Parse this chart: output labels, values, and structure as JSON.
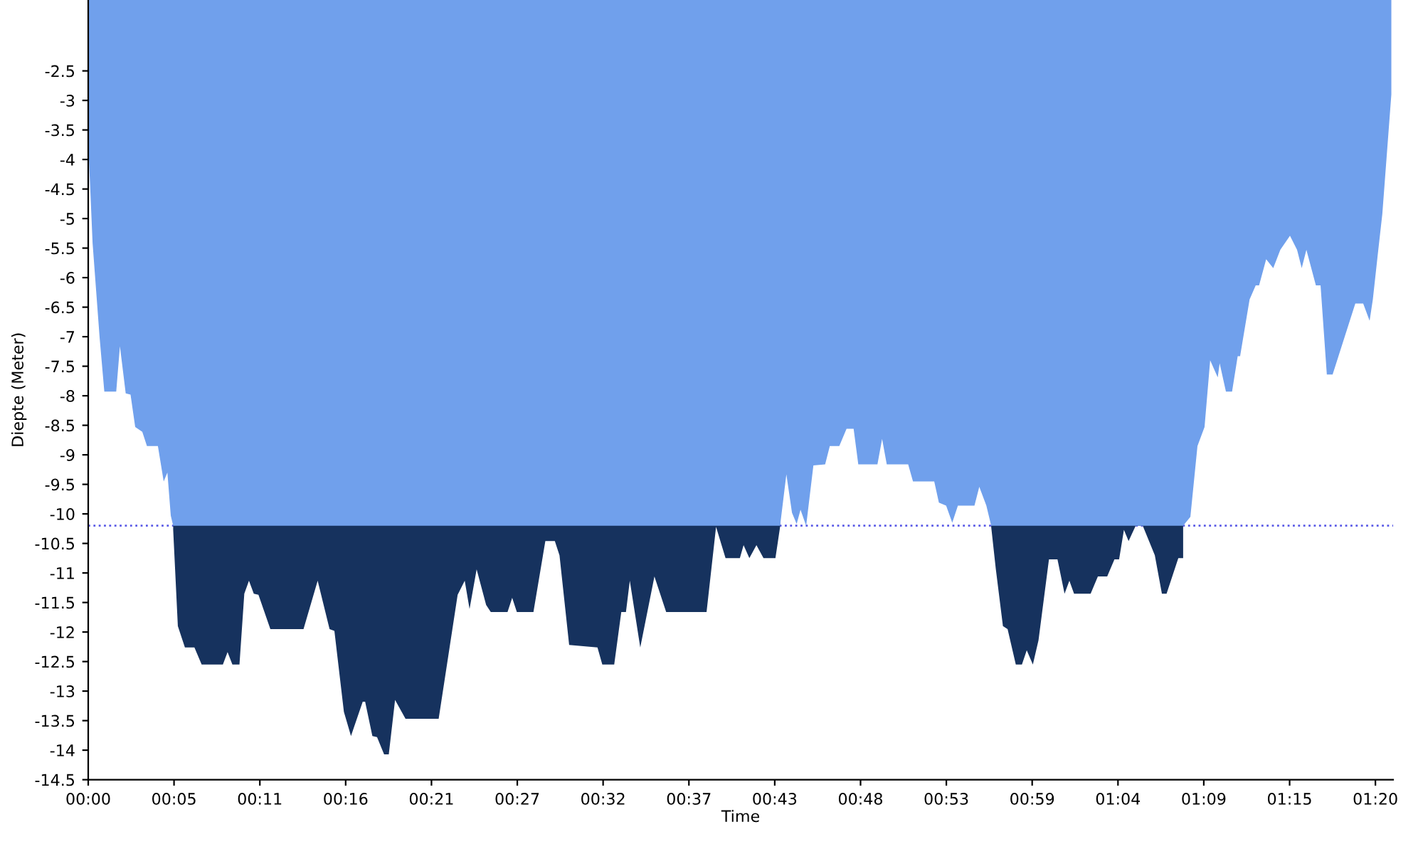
{
  "chart_data": {
    "type": "area",
    "xlabel": "Time",
    "ylabel": "Diepte (Meter)",
    "x": [
      0,
      0.27,
      0.71,
      1.0,
      1.74,
      1.97,
      2.33,
      2.63,
      2.92,
      3.36,
      3.65,
      4.33,
      4.69,
      4.92,
      5.13,
      5.28,
      5.57,
      6.01,
      6.6,
      7.05,
      8.37,
      8.66,
      8.96,
      9.4,
      9.7,
      9.99,
      10.29,
      10.58,
      11.32,
      13.38,
      14.26,
      15.0,
      15.3,
      15.89,
      16.33,
      17.06,
      17.21,
      17.66,
      17.95,
      18.39,
      18.68,
      19.07,
      19.72,
      21.78,
      22.96,
      23.4,
      23.7,
      24.14,
      24.73,
      25.02,
      26.06,
      26.35,
      26.64,
      27.67,
      28.41,
      29.0,
      29.29,
      29.89,
      31.65,
      31.95,
      32.69,
      33.13,
      33.42,
      33.66,
      34.31,
      35.19,
      35.92,
      38.43,
      39.02,
      39.61,
      40.5,
      40.73,
      41.09,
      41.53,
      41.97,
      42.71,
      43.0,
      43.39,
      43.74,
      44.03,
      44.27,
      44.62,
      45.07,
      45.8,
      46.09,
      46.68,
      47.13,
      47.57,
      47.86,
      49.05,
      49.34,
      49.63,
      50.96,
      51.26,
      52.58,
      52.87,
      53.32,
      53.7,
      54.05,
      55.08,
      55.38,
      55.82,
      56.12,
      56.41,
      56.85,
      57.14,
      57.65,
      58.03,
      58.33,
      58.71,
      59.06,
      59.71,
      60.24,
      60.68,
      60.98,
      61.27,
      62.3,
      62.75,
      63.33,
      63.78,
      64.07,
      64.37,
      64.66,
      65.1,
      65.54,
      66.29,
      66.73,
      67.02,
      67.75,
      68.05,
      68.5,
      68.94,
      69.38,
      69.73,
      70.2,
      70.32,
      70.71,
      71.09,
      71.44,
      71.59,
      72.18,
      72.56,
      72.77,
      73.21,
      73.65,
      74.09,
      74.69,
      75.13,
      75.42,
      75.71,
      76.3,
      76.59,
      76.98,
      77.34,
      78.75,
      79.24,
      79.64,
      79.84,
      80.13,
      80.43,
      80.99
    ],
    "series": [
      {
        "color": "#16325e",
        "values": [
          null,
          null,
          null,
          null,
          null,
          null,
          null,
          null,
          null,
          null,
          null,
          null,
          null,
          null,
          null,
          -10.27,
          -11.9,
          -12.26,
          -12.26,
          -12.55,
          -12.55,
          -12.34,
          -12.55,
          -12.55,
          -11.35,
          -11.13,
          -11.35,
          -11.37,
          -11.95,
          -11.95,
          -11.13,
          -11.95,
          -11.98,
          -13.35,
          -13.76,
          -13.18,
          -13.18,
          -13.76,
          -13.78,
          -14.07,
          -14.07,
          -13.15,
          -13.47,
          -13.47,
          -11.37,
          -11.13,
          -11.61,
          -10.94,
          -11.54,
          -11.66,
          -11.66,
          -11.42,
          -11.66,
          -11.66,
          -10.46,
          -10.46,
          -10.7,
          -12.22,
          -12.26,
          -12.55,
          -12.55,
          -11.66,
          -11.66,
          -11.13,
          -12.26,
          -11.06,
          -11.66,
          -11.66,
          -10.22,
          -10.75,
          -10.75,
          -10.53,
          -10.75,
          -10.53,
          -10.75,
          -10.75,
          -10.22,
          null,
          null,
          null,
          null,
          null,
          null,
          null,
          null,
          null,
          null,
          null,
          null,
          null,
          null,
          null,
          null,
          null,
          null,
          null,
          null,
          null,
          null,
          null,
          null,
          null,
          -10.22,
          -10.94,
          -11.9,
          -11.95,
          -12.55,
          -12.55,
          -12.31,
          -12.55,
          -12.14,
          -10.77,
          -10.77,
          -11.35,
          -11.13,
          -11.35,
          -11.35,
          -11.06,
          -11.06,
          -10.77,
          -10.77,
          -10.27,
          -10.46,
          -10.2,
          -10.2,
          -10.7,
          -11.35,
          -11.35,
          -10.75,
          -10.75,
          null,
          null,
          null,
          null,
          null,
          null,
          null,
          null,
          null,
          null,
          null,
          null,
          null,
          null,
          null,
          null,
          null,
          null,
          null,
          null,
          null,
          null,
          null,
          null,
          null,
          null,
          null,
          null,
          null,
          null,
          null
        ]
      },
      {
        "color": "#70a0ec",
        "values": [
          -3.7,
          -5.41,
          -7.02,
          -7.93,
          -7.93,
          -7.16,
          -7.96,
          -7.98,
          -8.53,
          -8.61,
          -8.85,
          -8.85,
          -9.45,
          -9.3,
          -10.03,
          -10.2,
          -10.2,
          -10.2,
          -10.2,
          -10.2,
          -10.2,
          -10.2,
          -10.2,
          -10.2,
          -10.2,
          -10.2,
          -10.2,
          -10.2,
          -10.2,
          -10.2,
          -10.2,
          -10.2,
          -10.2,
          -10.2,
          -10.2,
          -10.2,
          -10.2,
          -10.2,
          -10.2,
          -10.2,
          -10.2,
          -10.2,
          -10.2,
          -10.2,
          -10.2,
          -10.2,
          -10.2,
          -10.2,
          -10.2,
          -10.2,
          -10.2,
          -10.2,
          -10.2,
          -10.2,
          -10.2,
          -10.2,
          -10.2,
          -10.2,
          -10.2,
          -10.2,
          -10.2,
          -10.2,
          -10.2,
          -10.2,
          -10.2,
          -10.2,
          -10.2,
          -10.2,
          -10.2,
          -10.2,
          -10.2,
          -10.2,
          -10.2,
          -10.2,
          -10.2,
          -10.2,
          -10.2,
          -9.33,
          -9.98,
          -10.17,
          -9.93,
          -10.2,
          -9.18,
          -9.16,
          -8.85,
          -8.85,
          -8.56,
          -8.56,
          -9.16,
          -9.16,
          -8.73,
          -9.16,
          -9.16,
          -9.45,
          -9.45,
          -9.81,
          -9.86,
          -10.15,
          -9.86,
          -9.86,
          -9.54,
          -9.86,
          -10.2,
          -10.2,
          -10.2,
          -10.2,
          -10.2,
          -10.2,
          -10.2,
          -10.2,
          -10.2,
          -10.2,
          -10.2,
          -10.2,
          -10.2,
          -10.2,
          -10.2,
          -10.2,
          -10.2,
          -10.2,
          -10.2,
          -10.2,
          -10.2,
          -10.2,
          -10.2,
          -10.2,
          -10.2,
          -10.2,
          -10.2,
          -10.2,
          -10.05,
          -8.85,
          -8.53,
          -7.4,
          -7.69,
          -7.45,
          -7.93,
          -7.93,
          -7.33,
          -7.33,
          -6.37,
          -6.13,
          -6.13,
          -5.69,
          -5.84,
          -5.53,
          -5.29,
          -5.53,
          -5.84,
          -5.53,
          -6.13,
          -6.13,
          -7.64,
          -7.64,
          -6.44,
          -6.44,
          -6.73,
          -6.37,
          -5.65,
          -4.92,
          -2.9
        ]
      }
    ],
    "xlim": [
      0,
      81.1
    ],
    "ylim": [
      -14.5,
      -1.3
    ],
    "xticks": [
      {
        "value": 0,
        "label": "00:00"
      },
      {
        "value": 5.333,
        "label": "00:05"
      },
      {
        "value": 10.667,
        "label": "00:11"
      },
      {
        "value": 16,
        "label": "00:16"
      },
      {
        "value": 21.333,
        "label": "00:21"
      },
      {
        "value": 26.667,
        "label": "00:27"
      },
      {
        "value": 32,
        "label": "00:32"
      },
      {
        "value": 37.333,
        "label": "00:37"
      },
      {
        "value": 42.667,
        "label": "00:43"
      },
      {
        "value": 48,
        "label": "00:48"
      },
      {
        "value": 53.333,
        "label": "00:53"
      },
      {
        "value": 58.667,
        "label": "00:59"
      },
      {
        "value": 64,
        "label": "01:04"
      },
      {
        "value": 69.333,
        "label": "01:09"
      },
      {
        "value": 74.667,
        "label": "01:15"
      },
      {
        "value": 80,
        "label": "01:20"
      }
    ],
    "yticks": [
      -2.5,
      -3,
      -3.5,
      -4,
      -4.5,
      -5,
      -5.5,
      -6,
      -6.5,
      -7,
      -7.5,
      -8,
      -8.5,
      -9,
      -9.5,
      -10,
      -10.5,
      -11,
      -11.5,
      -12,
      -12.5,
      -13,
      -13.5,
      -14,
      -14.5
    ],
    "ref_lines": [
      {
        "axis": "y",
        "value": -10.2,
        "color": "#5a5ae6",
        "line_style": "dotted"
      }
    ],
    "grid": false,
    "legend": false
  }
}
